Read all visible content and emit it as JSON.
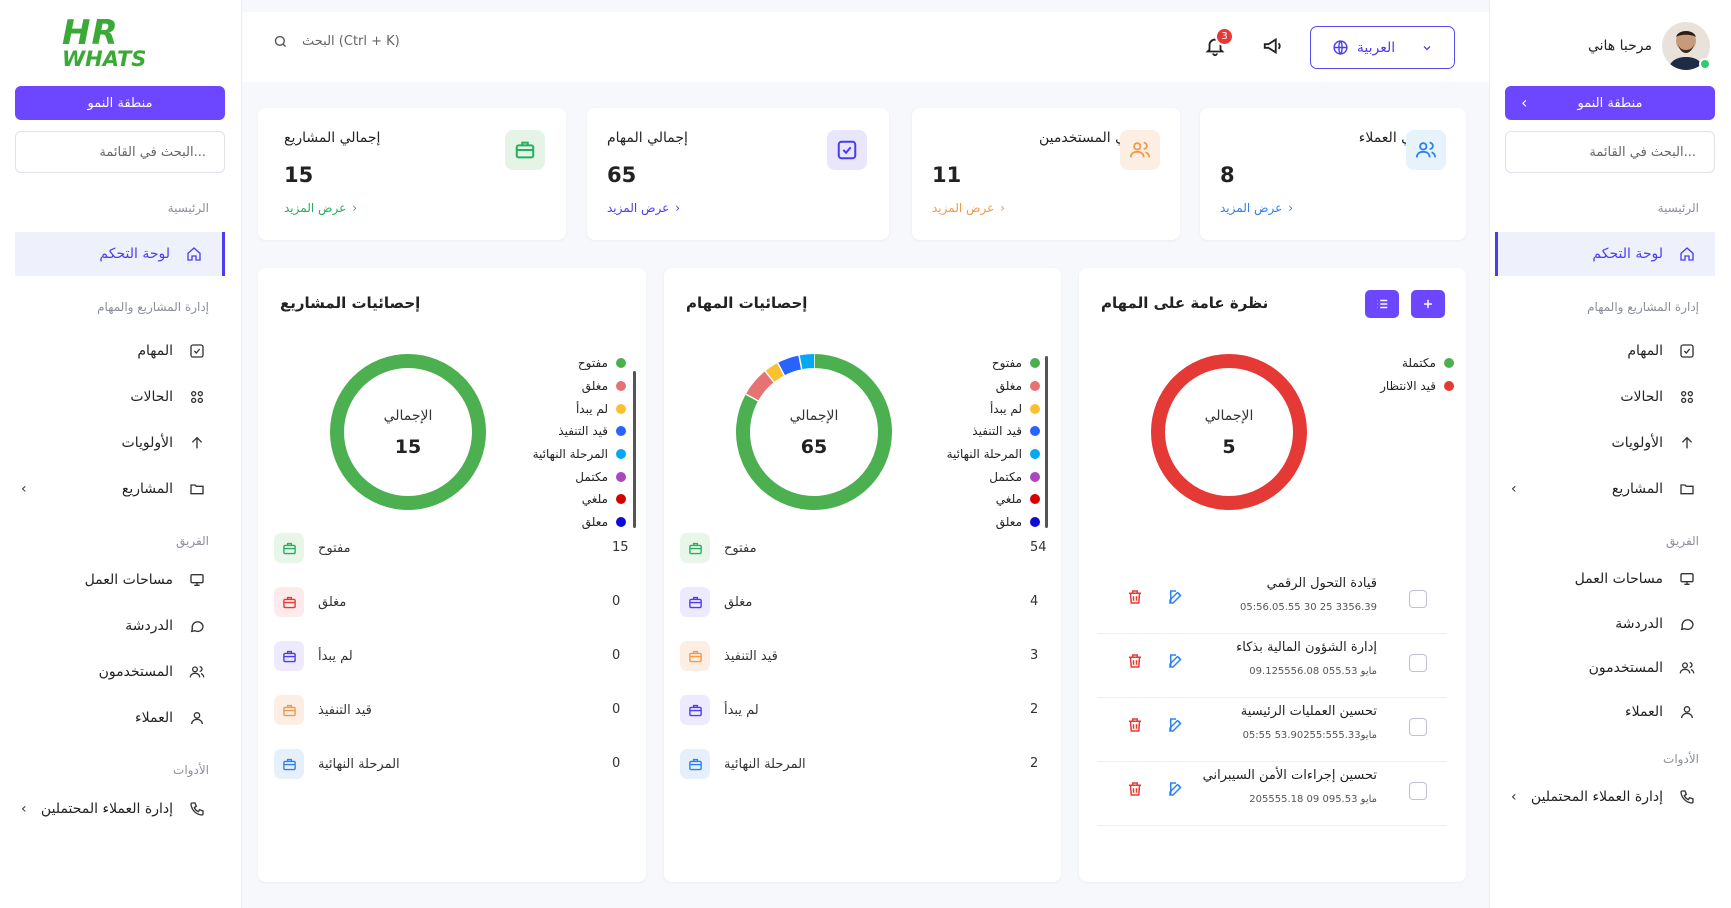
{
  "logo": {
    "line1": "HR",
    "line2": "WHATS"
  },
  "sidebar": {
    "zone_button": "منطقة النمو",
    "search_placeholder": "البحث في القائمة...",
    "sections": {
      "main": "الرئيسية",
      "projects": "إدارة المشاريع والمهام",
      "team": "الفريق",
      "tools": "الأدوات"
    },
    "items": {
      "dashboard": "لوحة التحكم",
      "tasks": "المهام",
      "statuses": "الحالات",
      "priorities": "الأولويات",
      "projects": "المشاريع",
      "workspaces": "مساحات العمل",
      "chat": "الدردشة",
      "users": "المستخدمون",
      "clients": "العملاء",
      "leads": "إدارة العملاء المحتملين"
    }
  },
  "header": {
    "search_placeholder": "البحث (Ctrl + K)",
    "notifications_count": "3",
    "language": "العربية",
    "greeting": "مرحبا هاني"
  },
  "stats": [
    {
      "title": "إجمالي العملاء",
      "value": "8",
      "link": "عرض المزيد",
      "color": "#2f80ed",
      "icon": "users-icon"
    },
    {
      "title": "إجمالي المستخدمين",
      "value": "11",
      "link": "عرض المزيد",
      "color": "#f2994a",
      "icon": "users-icon"
    },
    {
      "title": "إجمالي المهام",
      "value": "65",
      "link": "عرض المزيد",
      "color": "#4b3cf0",
      "icon": "check-square-icon"
    },
    {
      "title": "إجمالي المشاريع",
      "value": "15",
      "link": "عرض المزيد",
      "color": "#27ae60",
      "icon": "briefcase-icon"
    }
  ],
  "overview": {
    "title": "نظرة عامة على المهام",
    "center_label": "الإجمالي",
    "total": "5",
    "legend": [
      {
        "name": "مكتملة",
        "color": "#4caf50"
      },
      {
        "name": "قيد الانتظار",
        "color": "#e53935"
      }
    ],
    "tasks": [
      {
        "title": "قيادة التحول الرقمي",
        "date": "05:56.05.55 30 25 3356.39"
      },
      {
        "title": "إدارة الشؤون المالية بذكاء",
        "date": "مايو 055.53 09.125556.08"
      },
      {
        "title": "تحسين العمليات الرئيسية",
        "date": "05:55 مايو53.90255:555.33"
      },
      {
        "title": "تحسين إجراءات الأمن السيبراني",
        "date": "مايو 095.53 09 205555.18"
      }
    ]
  },
  "legend_labels": [
    "مفتوح",
    "مغلق",
    "لم يبدأ",
    "قيد التنفيذ",
    "المرحلة النهائية",
    "مكتمل",
    "ملغي",
    "معلق"
  ],
  "legend_colors": [
    "#4caf50",
    "#e57373",
    "#fbc02d",
    "#2962ff",
    "#03a9f4",
    "#ab47bc",
    "#d50000",
    "#0d0dd6"
  ],
  "task_stats": {
    "title": "إحصائيات المهام",
    "center_label": "الإجمالي",
    "total": "65",
    "rows": [
      {
        "label": "مفتوح",
        "count": "54",
        "color": "#27ae60",
        "bg": "#e8f5e9"
      },
      {
        "label": "مغلق",
        "count": "4",
        "color": "#4b3cf0",
        "bg": "#eeeafd"
      },
      {
        "label": "قيد التنفيذ",
        "count": "3",
        "color": "#f2994a",
        "bg": "#fdeee3"
      },
      {
        "label": "لم يبدأ",
        "count": "2",
        "color": "#4b3cf0",
        "bg": "#eeeafd"
      },
      {
        "label": "المرحلة النهائية",
        "count": "2",
        "color": "#2f80ed",
        "bg": "#e6f0fb"
      }
    ]
  },
  "project_stats": {
    "title": "إحصائيات المشاريع",
    "center_label": "الإجمالي",
    "total": "15",
    "rows": [
      {
        "label": "مفتوح",
        "count": "15",
        "color": "#27ae60",
        "bg": "#e8f5e9"
      },
      {
        "label": "مغلق",
        "count": "0",
        "color": "#e53935",
        "bg": "#fdeaea"
      },
      {
        "label": "لم يبدأ",
        "count": "0",
        "color": "#4b3cf0",
        "bg": "#eeeafd"
      },
      {
        "label": "قيد التنفيذ",
        "count": "0",
        "color": "#f2994a",
        "bg": "#fdeee3"
      },
      {
        "label": "المرحلة النهائية",
        "count": "0",
        "color": "#2f80ed",
        "bg": "#e6f0fb"
      }
    ]
  },
  "chart_data": [
    {
      "type": "pie",
      "title": "إحصائيات المهام",
      "categories": [
        "مفتوح",
        "مغلق",
        "لم يبدأ",
        "قيد التنفيذ",
        "المرحلة النهائية",
        "مكتمل",
        "ملغي",
        "معلق"
      ],
      "values": [
        54,
        4,
        2,
        3,
        2,
        0,
        0,
        0
      ]
    },
    {
      "type": "pie",
      "title": "إحصائيات المشاريع",
      "categories": [
        "مفتوح",
        "مغلق",
        "لم يبدأ",
        "قيد التنفيذ",
        "المرحلة النهائية",
        "مكتمل",
        "ملغي",
        "معلق"
      ],
      "values": [
        15,
        0,
        0,
        0,
        0,
        0,
        0,
        0
      ]
    },
    {
      "type": "pie",
      "title": "نظرة عامة على المهام",
      "categories": [
        "مكتملة",
        "قيد الانتظار"
      ],
      "values": [
        0,
        5
      ]
    }
  ]
}
